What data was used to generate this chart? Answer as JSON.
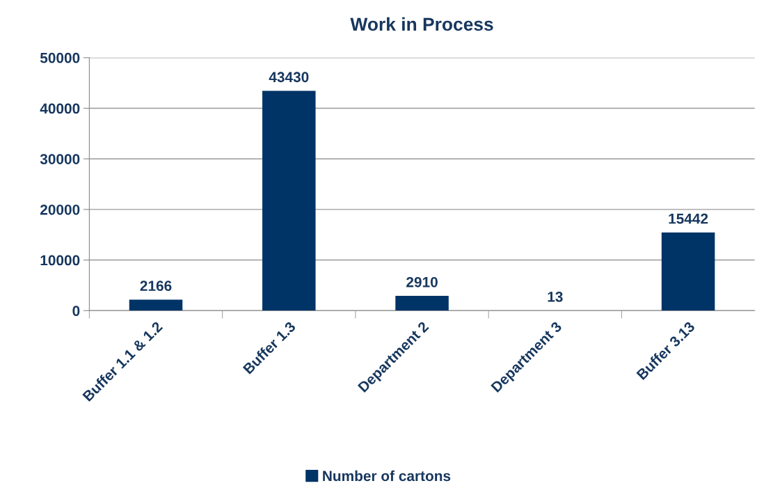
{
  "chart_data": {
    "type": "bar",
    "title": "Work in Process",
    "categories": [
      "Buffer 1.1 & 1.2",
      "Buffer 1.3",
      "Department 2",
      "Department 3",
      "Buffer 3.13"
    ],
    "series": [
      {
        "name": "Number of cartons",
        "color": "#003366",
        "values": [
          2166,
          43430,
          2910,
          13,
          15442
        ]
      }
    ],
    "ylim": [
      0,
      50000
    ],
    "yticks": [
      0,
      10000,
      20000,
      30000,
      40000,
      50000
    ],
    "grid": "y",
    "legend": "bottom",
    "data_labels": true
  }
}
